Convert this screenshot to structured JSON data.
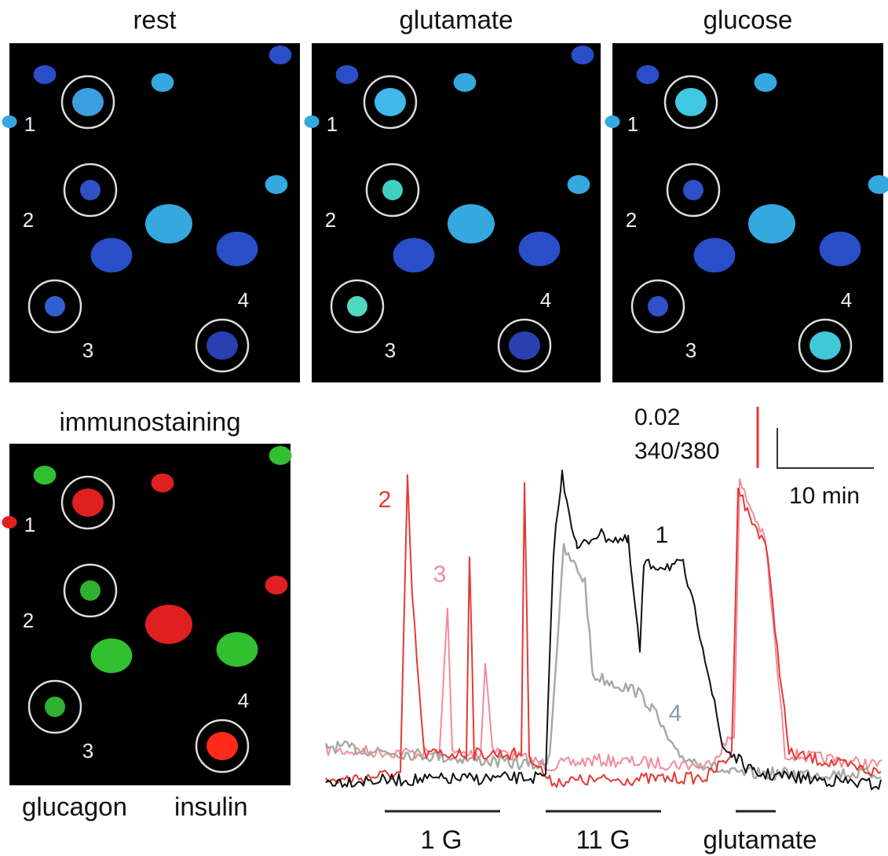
{
  "panels": [
    {
      "title": "rest",
      "cells": [
        "1",
        "2",
        "3",
        "4"
      ]
    },
    {
      "title": "glutamate",
      "cells": [
        "1",
        "2",
        "3",
        "4"
      ]
    },
    {
      "title": "glucose",
      "cells": [
        "1",
        "2",
        "3",
        "4"
      ]
    }
  ],
  "immunostaining": {
    "title": "immunostaining",
    "cells": [
      "1",
      "2",
      "3",
      "4"
    ],
    "legend": [
      "glucagon",
      "insulin"
    ]
  },
  "traces": {
    "scale_value": "0.02",
    "scale_unit": "340/380",
    "scale_time": "10 min",
    "labels": [
      "2",
      "3",
      "1",
      "4"
    ],
    "stimuli": [
      "1 G",
      "11 G",
      "glutamate"
    ]
  }
}
